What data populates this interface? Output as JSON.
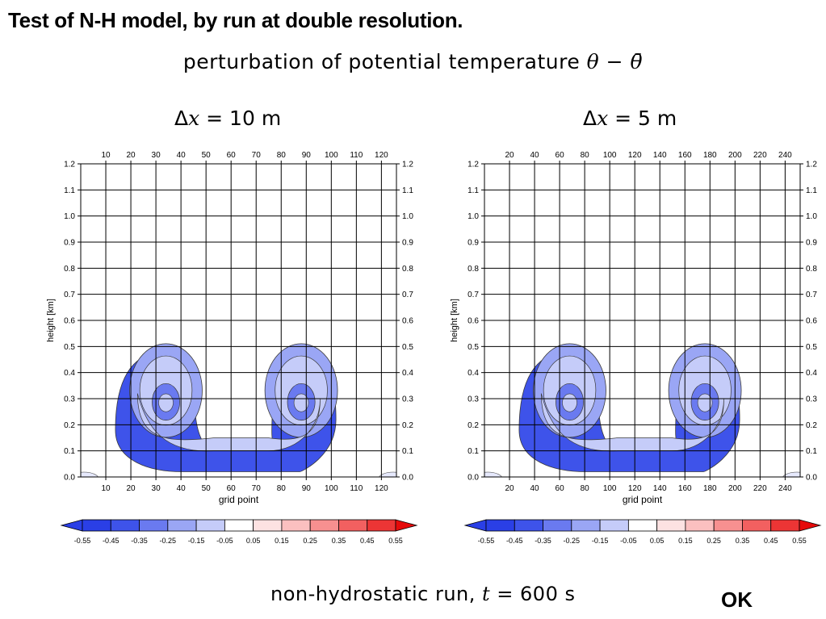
{
  "slide_title": "Test of N-H model, by run at double resolution.",
  "figure_title": {
    "text": "perturbation of potential temperature ",
    "math": "θ − θ̄"
  },
  "footer": {
    "text": "non-hydrostatic run, ",
    "math": "t",
    "rest": " = 600 s"
  },
  "verdict": "OK",
  "colors": {
    "negative_scale": [
      "#2a3fe6",
      "#3e53ea",
      "#6a7af0",
      "#9aa6f5",
      "#c5ccf9",
      "#e6e9fd"
    ],
    "positive_scale": [
      "#fde2e2",
      "#fbc0c0",
      "#f79090",
      "#f26060",
      "#ec3535",
      "#e60a0a"
    ],
    "contour_line": "#3a3a3a"
  },
  "chart_data": [
    {
      "type": "heatmap",
      "title": {
        "prefix": "Δ",
        "var": "x",
        "rest": " = 10 m"
      },
      "xlabel": "grid point",
      "ylabel": "height [km]",
      "xlim": [
        0,
        126
      ],
      "x_ticks": [
        10,
        20,
        30,
        40,
        50,
        60,
        70,
        80,
        90,
        100,
        110,
        120
      ],
      "ylim": [
        0.0,
        1.2
      ],
      "y_ticks": [
        "0.0",
        "0.1",
        "0.2",
        "0.3",
        "0.4",
        "0.5",
        "0.6",
        "0.7",
        "0.8",
        "0.9",
        "1.0",
        "1.1",
        "1.2"
      ],
      "grid": true,
      "colorbar": {
        "levels": [
          -0.55,
          -0.45,
          -0.35,
          -0.25,
          -0.15,
          -0.05,
          0.05,
          0.15,
          0.25,
          0.35,
          0.45,
          0.55
        ],
        "tick_labels": [
          "-0.55",
          "-0.45",
          "-0.35",
          "-0.25",
          "-0.15",
          "-0.05",
          "0.05",
          "0.15",
          "0.25",
          "0.35",
          "0.45",
          "0.55"
        ]
      },
      "rotors": [
        {
          "center_x": 34,
          "center_y": 0.3,
          "direction": "left"
        },
        {
          "center_x": 88,
          "center_y": 0.3,
          "direction": "right"
        }
      ],
      "base_band": {
        "x_start": 28,
        "x_end": 100,
        "y_bottom": 0.02,
        "y_top": 0.1
      },
      "cap_top": 0.48
    },
    {
      "type": "heatmap",
      "title": {
        "prefix": "Δ",
        "var": "x",
        "rest": " = 5 m"
      },
      "xlabel": "grid point",
      "ylabel": "height [km]",
      "xlim": [
        0,
        252
      ],
      "x_ticks": [
        20,
        40,
        60,
        80,
        100,
        120,
        140,
        160,
        180,
        200,
        220,
        240
      ],
      "ylim": [
        0.0,
        1.2
      ],
      "y_ticks": [
        "0.0",
        "0.1",
        "0.2",
        "0.3",
        "0.4",
        "0.5",
        "0.6",
        "0.7",
        "0.8",
        "0.9",
        "1.0",
        "1.1",
        "1.2"
      ],
      "grid": true,
      "colorbar": {
        "levels": [
          -0.55,
          -0.45,
          -0.35,
          -0.25,
          -0.15,
          -0.05,
          0.05,
          0.15,
          0.25,
          0.35,
          0.45,
          0.55
        ],
        "tick_labels": [
          "-0.55",
          "-0.45",
          "-0.35",
          "-0.25",
          "-0.15",
          "-0.05",
          "0.05",
          "0.15",
          "0.25",
          "0.35",
          "0.45",
          "0.55"
        ]
      },
      "rotors": [
        {
          "center_x": 68,
          "center_y": 0.3,
          "direction": "left"
        },
        {
          "center_x": 176,
          "center_y": 0.3,
          "direction": "right"
        }
      ],
      "base_band": {
        "x_start": 56,
        "x_end": 200,
        "y_bottom": 0.02,
        "y_top": 0.1
      },
      "cap_top": 0.48
    }
  ]
}
